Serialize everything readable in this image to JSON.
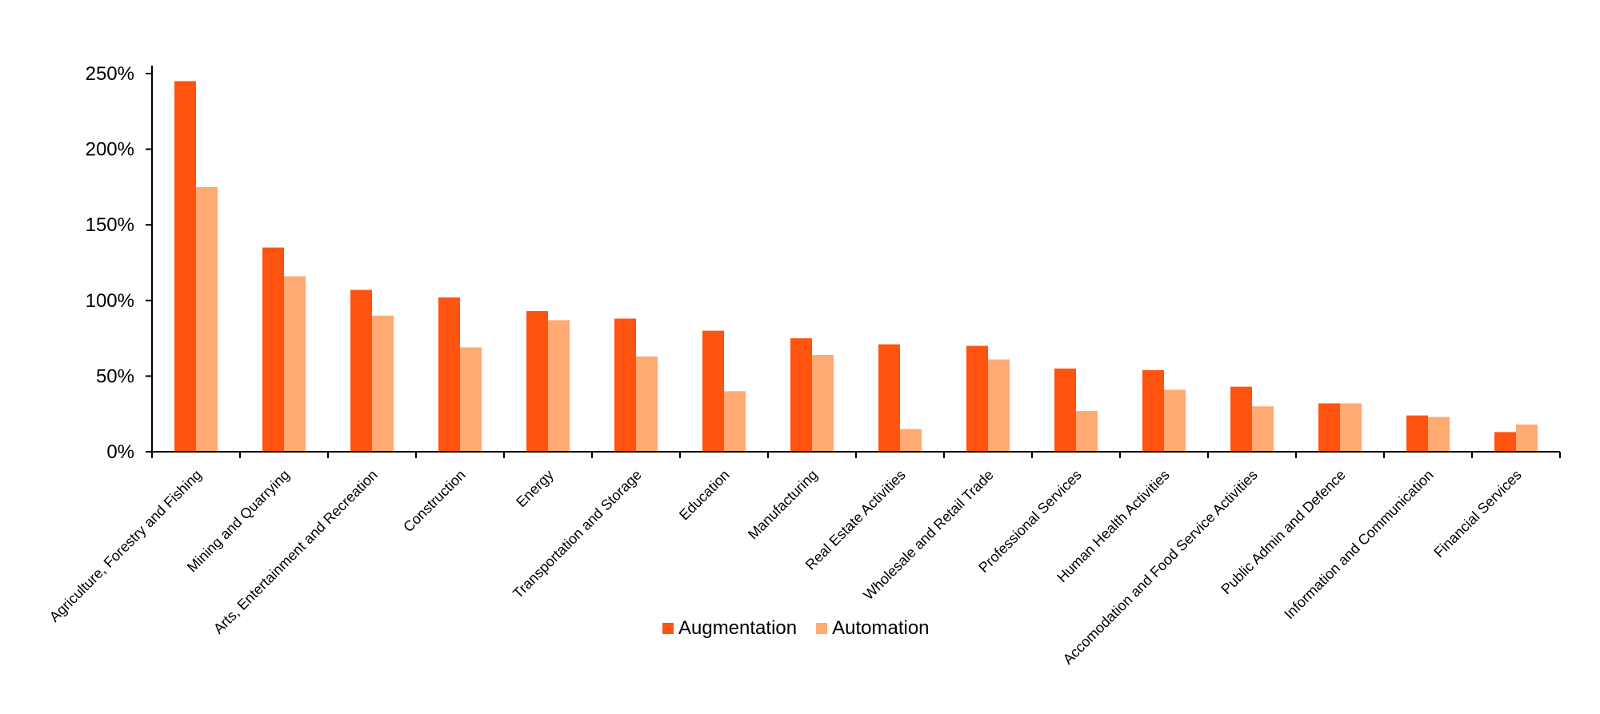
{
  "chart_data": {
    "type": "bar",
    "title": "",
    "xlabel": "",
    "ylabel": "",
    "ylim": [
      0,
      250
    ],
    "y_ticks": [
      "0%",
      "50%",
      "100%",
      "150%",
      "200%",
      "250%"
    ],
    "y_tick_values": [
      0,
      50,
      100,
      150,
      200,
      250
    ],
    "grid": false,
    "legend_position": "bottom",
    "categories": [
      "Agriculture, Forestry and Fishing",
      "Mining and Quarrying",
      "Arts, Entertainment and Recreation",
      "Construction",
      "Energy",
      "Transportation and Storage",
      "Education",
      "Manufacturing",
      "Real Estate Activities",
      "Wholesale and Retail Trade",
      "Professional Services",
      "Human Health Activities",
      "Accomodation and Food Service Activities",
      "Public Admin and Defence",
      "Information and Communication",
      "Financial Services"
    ],
    "series": [
      {
        "name": "Augmentation",
        "color": "#FF5310",
        "values": [
          245,
          135,
          107,
          102,
          93,
          88,
          80,
          75,
          71,
          70,
          55,
          54,
          43,
          32,
          24,
          13
        ]
      },
      {
        "name": "Automation",
        "color": "#FFAA72",
        "values": [
          175,
          116,
          90,
          69,
          87,
          63,
          40,
          64,
          15,
          61,
          27,
          41,
          30,
          32,
          23,
          18
        ]
      }
    ]
  }
}
